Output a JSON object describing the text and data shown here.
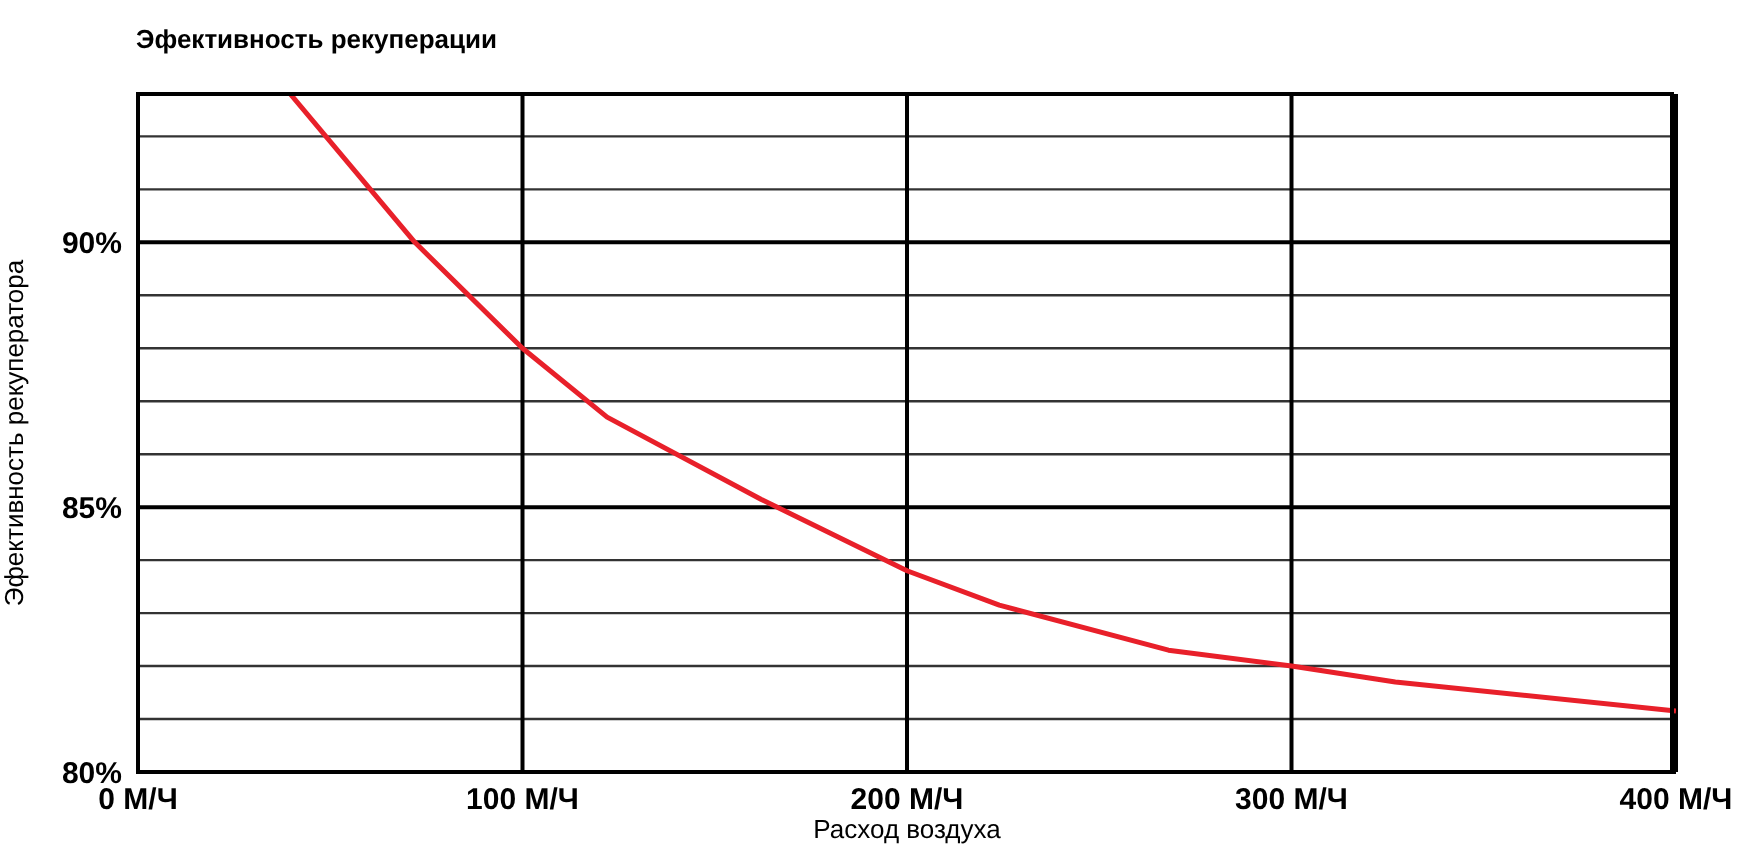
{
  "chart_data": {
    "type": "line",
    "title": "Эфективность рекуперации",
    "xlabel": "Расход воздуха",
    "ylabel": "Эфективность рекуператора",
    "x": [
      39.6,
      72,
      100,
      122,
      162,
      200,
      224,
      268,
      300,
      327,
      400
    ],
    "series": [
      {
        "color": "#e8202a",
        "values": [
          92.8,
          90,
          88,
          86.7,
          85.15,
          83.8,
          83.15,
          82.3,
          82,
          81.7,
          81.15
        ]
      }
    ],
    "xlim": [
      0,
      400
    ],
    "xticks": [
      {
        "value": 0,
        "label": "0 М/Ч"
      },
      {
        "value": 100,
        "label": "100 М/Ч"
      },
      {
        "value": 200,
        "label": "200 М/Ч"
      },
      {
        "value": 300,
        "label": "300 М/Ч"
      },
      {
        "value": 400,
        "label": "400 М/Ч"
      }
    ],
    "ylim": [
      80,
      92.8
    ],
    "yticks": [
      {
        "value": 80,
        "label": "80%"
      },
      {
        "value": 81,
        "label": null
      },
      {
        "value": 82,
        "label": null
      },
      {
        "value": 83,
        "label": null
      },
      {
        "value": 84,
        "label": null
      },
      {
        "value": 85,
        "label": "85%"
      },
      {
        "value": 86,
        "label": null
      },
      {
        "value": 87,
        "label": null
      },
      {
        "value": 88,
        "label": null
      },
      {
        "value": 89,
        "label": null
      },
      {
        "value": 90,
        "label": "90%"
      },
      {
        "value": 91,
        "label": null
      },
      {
        "value": 92,
        "label": null
      }
    ],
    "grid": true,
    "marker": "none",
    "line_style": "solid"
  }
}
